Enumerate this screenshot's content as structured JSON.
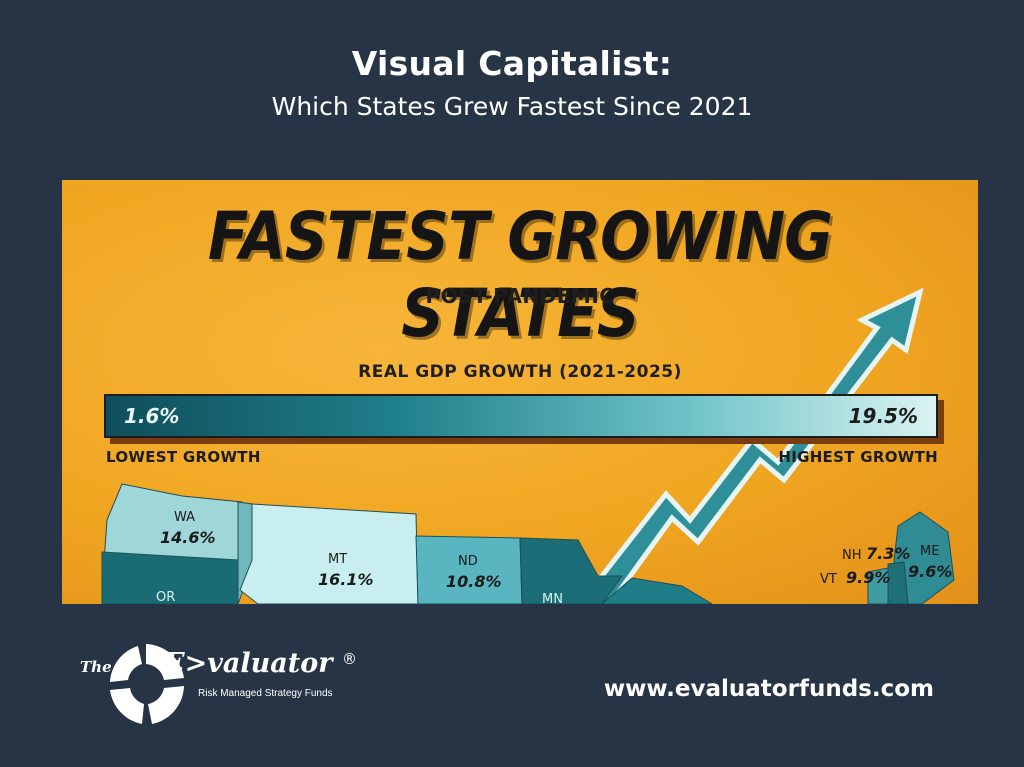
{
  "header": {
    "title": "Visual Capitalist:",
    "subtitle": "Which States Grew Fastest Since 2021"
  },
  "infographic": {
    "headline": "FASTEST GROWING STATES",
    "subheadline": "POST-PANDEMIC",
    "metric_label": "REAL GDP GROWTH (2021-2025)",
    "scale_min": "1.6%",
    "scale_max": "19.5%",
    "low_label": "LOWEST GROWTH",
    "high_label": "HIGHEST GROWTH",
    "colors": {
      "background": "#f0a621",
      "low": "#0f4e5a",
      "high": "#d9f3f1",
      "arrow": "#2f8f98"
    },
    "states": [
      {
        "code": "WA",
        "value": "14.6%"
      },
      {
        "code": "MT",
        "value": "16.1%"
      },
      {
        "code": "ND",
        "value": "10.8%"
      },
      {
        "code": "OR",
        "value": ""
      },
      {
        "code": "MN",
        "value": ""
      },
      {
        "code": "NH",
        "value": "7.3%"
      },
      {
        "code": "VT",
        "value": "9.9%"
      },
      {
        "code": "ME",
        "value": "9.6%"
      }
    ]
  },
  "footer": {
    "logo_the": "The",
    "logo_name": "E>valuator",
    "logo_reg": "®",
    "logo_tagline": "Risk Managed Strategy Funds",
    "website": "www.evaluatorfunds.com"
  }
}
